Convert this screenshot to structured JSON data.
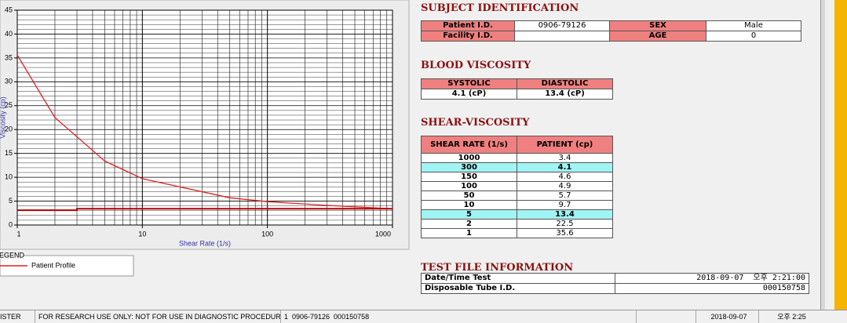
{
  "chart": {
    "type": "line",
    "xlabel": "Shear Rate (1/s)",
    "ylabel": "Viscosity (cp)",
    "xscale": "log",
    "xlim": [
      1,
      1000
    ],
    "ylim": [
      0,
      45
    ],
    "xticks": [
      1,
      10,
      100,
      1000
    ],
    "yticks": [
      0,
      5,
      10,
      15,
      20,
      25,
      30,
      35,
      40,
      45
    ],
    "xminorticks": [
      2,
      3,
      4,
      5,
      6,
      7,
      8,
      9,
      20,
      30,
      40,
      50,
      60,
      70,
      80,
      90,
      200,
      300,
      400,
      500,
      600,
      700,
      800,
      900
    ],
    "yminorticks": [
      1,
      2,
      3,
      4,
      6,
      7,
      8,
      9,
      11,
      12,
      13,
      14,
      16,
      17,
      18,
      19,
      21,
      22,
      23,
      24,
      26,
      27,
      28,
      29,
      31,
      32,
      33,
      34,
      36,
      37,
      38,
      39,
      41,
      42,
      43,
      44
    ],
    "grid": true,
    "series": [
      {
        "name": "Patient Profile",
        "color": "#e02020",
        "x": [
          1,
          2,
          5,
          10,
          50,
          100,
          150,
          300,
          1000
        ],
        "values": [
          35.6,
          22.5,
          13.4,
          9.7,
          5.7,
          4.9,
          4.6,
          4.1,
          3.4
        ]
      },
      {
        "color": "#b00000",
        "x": [
          1,
          3,
          3,
          1000
        ],
        "values": [
          3.1,
          3.1,
          3.4,
          3.4
        ]
      }
    ],
    "legend_title": "LEGEND"
  },
  "subject_identification": {
    "title": "SUBJECT IDENTIFICATION",
    "rows": [
      [
        "Patient I.D.",
        "0906-79126",
        "SEX",
        "Male"
      ],
      [
        "Facility I.D.",
        null,
        "AGE",
        "0"
      ]
    ]
  },
  "blood_viscosity": {
    "title": "BLOOD VISCOSITY",
    "headers": [
      "SYSTOLIC",
      "DIASTOLIC"
    ],
    "values": [
      "4.1 (cP)",
      "13.4 (cP)"
    ]
  },
  "shear_viscosity": {
    "title": "SHEAR-VISCOSITY",
    "headers": [
      "SHEAR RATE (1/s)",
      "PATIENT (cp)"
    ],
    "rows": [
      {
        "rate": "1000",
        "patient": "3.4",
        "highlight": false
      },
      {
        "rate": "300",
        "patient": "4.1",
        "highlight": true
      },
      {
        "rate": "150",
        "patient": "4.6",
        "highlight": false
      },
      {
        "rate": "100",
        "patient": "4.9",
        "highlight": false
      },
      {
        "rate": "50",
        "patient": "5.7",
        "highlight": false
      },
      {
        "rate": "10",
        "patient": "9.7",
        "highlight": false
      },
      {
        "rate": "5",
        "patient": "13.4",
        "highlight": true
      },
      {
        "rate": "2",
        "patient": "22.5",
        "highlight": false
      },
      {
        "rate": "1",
        "patient": "35.6",
        "highlight": false
      }
    ]
  },
  "test_file": {
    "title": "TEST FILE INFORMATION",
    "rows": [
      [
        "Date/Time Test",
        "2018-09-07  오후 2:21:00"
      ],
      [
        "Disposable Tube I.D.",
        "000150758"
      ]
    ]
  },
  "status_bar": [
    "ISTER",
    "FOR RESEARCH USE ONLY: NOT FOR USE IN DIAGNOSTIC PROCEDURES",
    "1  0906-79126  000150758",
    "2018-09-07",
    "오후 2:25"
  ]
}
